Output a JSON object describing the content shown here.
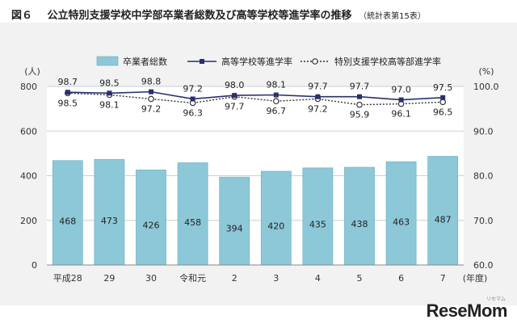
{
  "figure": {
    "label": "図６",
    "title": "公立特別支援学校中学部卒業者総数及び高等学校等進学率の推移",
    "note": "（統計表第15表）"
  },
  "chart_data": {
    "type": "bar",
    "categories": [
      "平成28",
      "29",
      "30",
      "令和元",
      "2",
      "3",
      "4",
      "5",
      "6",
      "7"
    ],
    "x_unit": "(年度)",
    "left_axis": {
      "unit": "(人)",
      "ylim": [
        0,
        800
      ],
      "ticks": [
        0,
        200,
        400,
        600,
        800
      ]
    },
    "right_axis": {
      "unit": "(%)",
      "ylim": [
        60.0,
        100.0
      ],
      "ticks": [
        "60.0",
        "70.0",
        "80.0",
        "90.0",
        "100.0"
      ]
    },
    "series": [
      {
        "name": "卒業者総数",
        "type": "bar",
        "axis": "left",
        "color": "#8cc8d8",
        "values": [
          468,
          473,
          426,
          458,
          394,
          420,
          435,
          438,
          463,
          487
        ]
      },
      {
        "name": "高等学校等進学率",
        "type": "line",
        "axis": "right",
        "color": "#2b2f6b",
        "marker": "square",
        "values": [
          98.7,
          98.5,
          98.8,
          97.2,
          98.0,
          98.1,
          97.7,
          97.7,
          97.0,
          97.5
        ]
      },
      {
        "name": "特別支援学校高等部進学率",
        "type": "line",
        "axis": "right",
        "color": "#333333",
        "marker": "circle-open",
        "dash": "dotted",
        "values": [
          98.5,
          98.1,
          97.2,
          96.3,
          97.7,
          96.7,
          97.2,
          95.9,
          96.1,
          96.5
        ]
      }
    ],
    "legend": "top",
    "grid": "horizontal"
  },
  "logo": {
    "text": "ReseMom",
    "small": "リセマム"
  }
}
